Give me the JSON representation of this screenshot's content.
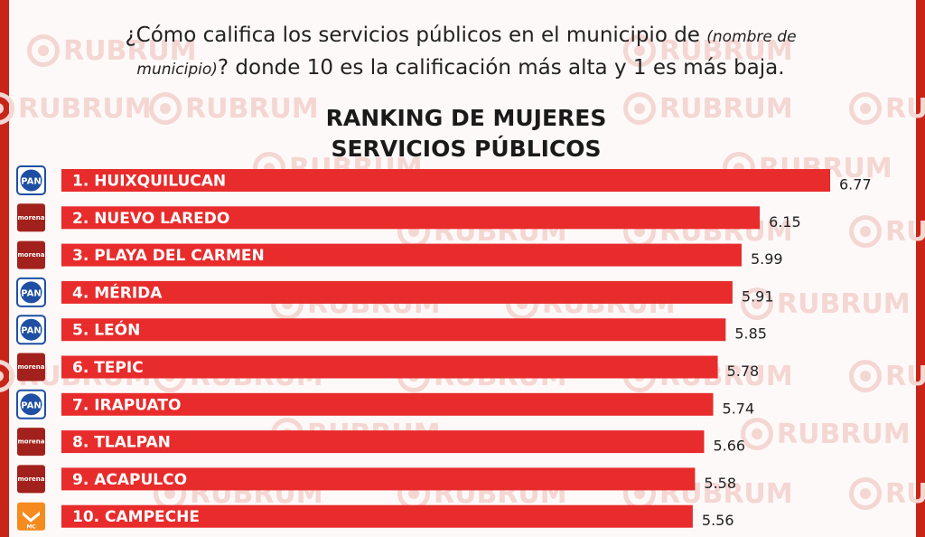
{
  "header": {
    "question_start": "¿Cómo califica los servicios públicos en el municipio de ",
    "question_italic_1": "(nombre de",
    "question_italic_2": "municipio)",
    "question_end": "? donde 10 es la calificación más alta y 1 es más baja.",
    "title_line1": "RANKING DE MUJERES",
    "title_line2": "SERVICIOS PÚBLICOS"
  },
  "watermark": {
    "text": "RUBRUM"
  },
  "colors": {
    "bar": "#e82b2b",
    "edge": "#c82518",
    "pan": "#1f4fa3",
    "morena": "#a2211c",
    "mc": "#f58a1f"
  },
  "parties": {
    "PAN": "PAN",
    "MORENA": "morena",
    "MC": "MC"
  },
  "chart_data": {
    "type": "bar",
    "orientation": "horizontal",
    "title": "RANKING DE MUJERES SERVICIOS PÚBLICOS",
    "categories": [
      "1. HUIXQUILUCAN",
      "2. NUEVO LAREDO",
      "3. PLAYA DEL CARMEN",
      "4. MÉRIDA",
      "5. LEÓN",
      "6. TEPIC",
      "7. IRAPUATO",
      "8. TLALPAN",
      "9. ACAPULCO",
      "10. CAMPECHE"
    ],
    "values": [
      6.77,
      6.15,
      5.99,
      5.91,
      5.85,
      5.78,
      5.74,
      5.66,
      5.58,
      5.56
    ],
    "value_labels": [
      "6.77",
      "6.15",
      "5.99",
      "5.91",
      "5.85",
      "5.78",
      "5.74",
      "5.66",
      "5.58",
      "5.56"
    ],
    "party": [
      "PAN",
      "MORENA",
      "MORENA",
      "PAN",
      "PAN",
      "MORENA",
      "PAN",
      "MORENA",
      "MORENA",
      "MC"
    ],
    "xlim": [
      0,
      6.77
    ]
  }
}
